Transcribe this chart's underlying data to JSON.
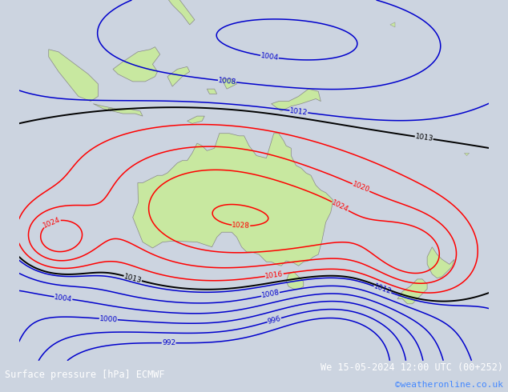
{
  "title_left": "Surface pressure [hPa] ECMWF",
  "title_right": "We 15-05-2024 12:00 UTC (00+252)",
  "title_right2": "©weatheronline.co.uk",
  "bg_color": "#ccd4e0",
  "land_color": "#c8e8a0",
  "land_edge": "#888888",
  "figsize": [
    6.34,
    4.9
  ],
  "dpi": 100,
  "red_levels": [
    1016,
    1020,
    1024,
    1028
  ],
  "blue_levels": [
    992,
    996,
    1000,
    1004,
    1008,
    1012
  ],
  "black_levels": [
    1013
  ],
  "lon_min": 90,
  "lon_max": 185,
  "lat_min": -58,
  "lat_max": 15
}
